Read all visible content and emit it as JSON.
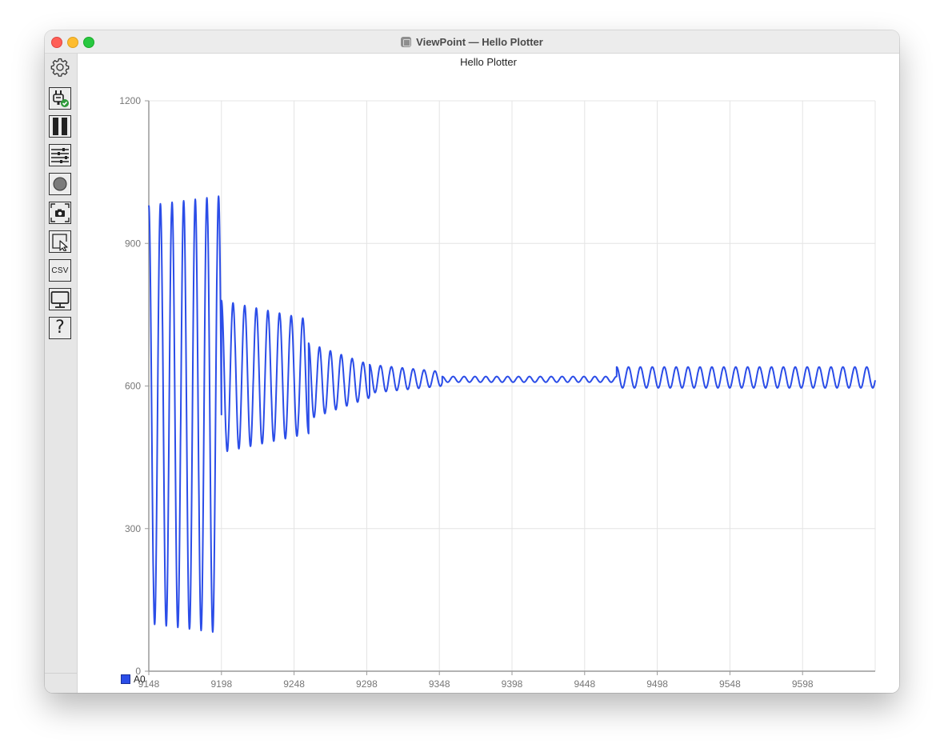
{
  "window": {
    "title": "ViewPoint — Hello Plotter"
  },
  "toolbar": {
    "items": [
      {
        "name": "settings",
        "icon": "gear-icon"
      },
      {
        "name": "connect",
        "icon": "plug-check-icon"
      },
      {
        "name": "pause",
        "icon": "pause-icon"
      },
      {
        "name": "plot-settings",
        "icon": "sliders-icon"
      },
      {
        "name": "record",
        "icon": "record-icon"
      },
      {
        "name": "screenshot",
        "icon": "camera-icon"
      },
      {
        "name": "select",
        "icon": "cursor-select-icon"
      },
      {
        "name": "export-csv",
        "label": "CSV",
        "icon": "csv-icon"
      },
      {
        "name": "display",
        "icon": "monitor-icon"
      },
      {
        "name": "help",
        "label": "?",
        "icon": "help-icon"
      }
    ]
  },
  "chart_data": {
    "type": "line",
    "title": "Hello Plotter",
    "xlabel": "",
    "ylabel": "",
    "xlim": [
      9148,
      9648
    ],
    "ylim": [
      0,
      1200
    ],
    "x_ticks": [
      9148,
      9198,
      9248,
      9298,
      9348,
      9398,
      9448,
      9498,
      9548,
      9598
    ],
    "y_ticks": [
      0,
      300,
      600,
      900,
      1200
    ],
    "grid": true,
    "legend_position": "bottom-left",
    "series": [
      {
        "name": "A0",
        "color": "#2b4de8",
        "segments": [
          {
            "x_start": 9148,
            "x_end": 9198,
            "period": 8,
            "amp_start": 440,
            "amp_end": 460,
            "mid": 540
          },
          {
            "x_start": 9198,
            "x_end": 9258,
            "period": 8,
            "amp_start": 160,
            "amp_end": 120,
            "mid": 620
          },
          {
            "x_start": 9258,
            "x_end": 9300,
            "period": 7.5,
            "amp_start": 80,
            "amp_end": 35,
            "mid": 610
          },
          {
            "x_start": 9300,
            "x_end": 9350,
            "period": 7.5,
            "amp_start": 30,
            "amp_end": 15,
            "mid": 615
          },
          {
            "x_start": 9350,
            "x_end": 9470,
            "period": 7.5,
            "amp_start": 6,
            "amp_end": 6,
            "mid": 614
          },
          {
            "x_start": 9470,
            "x_end": 9648,
            "period": 8.2,
            "amp_start": 22,
            "amp_end": 22,
            "mid": 618
          }
        ]
      }
    ]
  },
  "legend": {
    "label": "A0",
    "color": "#2b4de8"
  }
}
